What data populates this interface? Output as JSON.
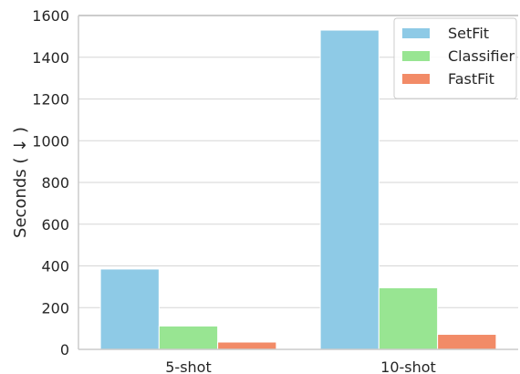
{
  "chart_data": {
    "type": "bar",
    "categories": [
      "5-shot",
      "10-shot"
    ],
    "series": [
      {
        "name": "SetFit",
        "values": [
          385,
          1530
        ],
        "color": "#8ecae6"
      },
      {
        "name": "Classifier",
        "values": [
          112,
          295
        ],
        "color": "#98e592"
      },
      {
        "name": "FastFit",
        "values": [
          35,
          72
        ],
        "color": "#f28b67"
      }
    ],
    "ylabel": "Seconds ( ↓ )",
    "ylim": [
      0,
      1600
    ],
    "yticks": [
      0,
      200,
      400,
      600,
      800,
      1000,
      1200,
      1400,
      1600
    ],
    "grid": "horizontal",
    "legend_position": "top-right"
  }
}
